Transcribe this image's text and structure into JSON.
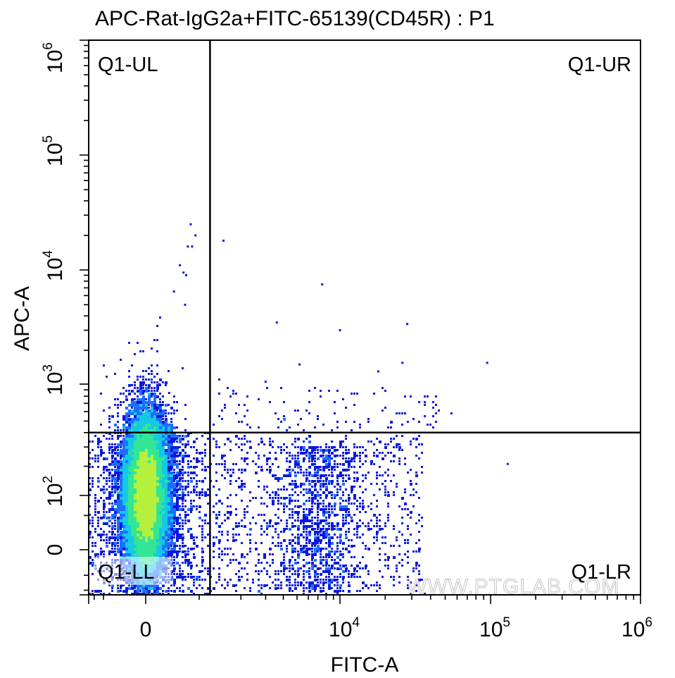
{
  "chart_data": {
    "type": "scatter",
    "subtype": "flow-cytometry-density-dot-plot",
    "title": "APC-Rat-IgG2a+FITC-65139(CD45R) : P1",
    "xlabel": "FITC-A",
    "ylabel": "APC-A",
    "x_scale": "biexponential",
    "y_scale": "biexponential",
    "x_ticks": [
      {
        "base": "0",
        "exp": ""
      },
      {
        "base": "10",
        "exp": "4"
      },
      {
        "base": "10",
        "exp": "5"
      },
      {
        "base": "10",
        "exp": "6"
      }
    ],
    "y_ticks": [
      {
        "base": "0",
        "exp": ""
      },
      {
        "base": "10",
        "exp": "2"
      },
      {
        "base": "10",
        "exp": "3"
      },
      {
        "base": "10",
        "exp": "4"
      },
      {
        "base": "10",
        "exp": "5"
      },
      {
        "base": "10",
        "exp": "6"
      }
    ],
    "xlim": [
      "-3000",
      "1000000"
    ],
    "ylim": [
      "-120",
      "1000000"
    ],
    "gate_x": 1200,
    "gate_y": 400,
    "quadrants": {
      "ul": "Q1-UL",
      "ur": "Q1-UR",
      "ll": "Q1-LL",
      "lr": "Q1-LR"
    },
    "populations": [
      {
        "name": "",
        "quadrant": "Q1-LL",
        "x_center": 0,
        "y_center": 100,
        "density": "very high"
      },
      {
        "name": "",
        "quadrant": "Q1-LR",
        "x_center": 7000,
        "y_center": 40,
        "density": "low"
      }
    ],
    "outliers": [
      {
        "x": 600,
        "y": 25000
      },
      {
        "x": 800,
        "y": 20000
      },
      {
        "x": 500,
        "y": 16000
      },
      {
        "x": 650,
        "y": 16000
      },
      {
        "x": 300,
        "y": 11000
      },
      {
        "x": 450,
        "y": 9000
      },
      {
        "x": 380,
        "y": 9500
      },
      {
        "x": 200,
        "y": 6500
      },
      {
        "x": 420,
        "y": 5000
      },
      {
        "x": 1500,
        "y": 18000
      },
      {
        "x": 7500,
        "y": 7500
      },
      {
        "x": 3600,
        "y": 3500
      },
      {
        "x": 10000,
        "y": 3000
      },
      {
        "x": 28000,
        "y": 3400
      },
      {
        "x": 5200,
        "y": 1500
      },
      {
        "x": 18000,
        "y": 1300
      },
      {
        "x": 26000,
        "y": 1550
      },
      {
        "x": 95000,
        "y": 1550
      },
      {
        "x": 3000,
        "y": 1050
      },
      {
        "x": 140,
        "y": 850
      },
      {
        "x": 60,
        "y": 1000
      },
      {
        "x": 55000,
        "y": 580
      },
      {
        "x": 130000,
        "y": 210
      }
    ],
    "colors": [
      "#0a1adc",
      "#1e6eff",
      "#14c8e6",
      "#32e696",
      "#b4f03c",
      "#ffe628",
      "#ff8c14",
      "#ff2d0a"
    ]
  },
  "watermark": "WWW.PTGLAB.COM"
}
